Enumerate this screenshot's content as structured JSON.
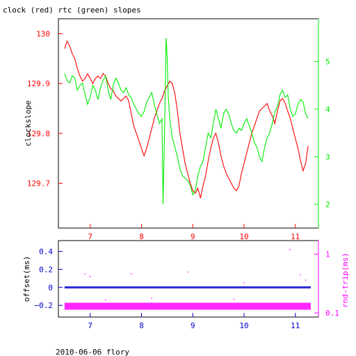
{
  "title": "clock (red) rtc (green) slopes",
  "footer": "2010-06-06 flory",
  "colors": {
    "red": "#ff0000",
    "green": "#00ee00",
    "blue": "#0000cc",
    "magenta": "#ff00ff",
    "axis": "#000000"
  },
  "chart_data": [
    {
      "type": "line",
      "title": "clock (red) rtc (green) slopes",
      "ylabel": "clockslope",
      "xlim": [
        6.38,
        11.45
      ],
      "ylim": [
        129.61,
        130.03
      ],
      "x_ticks": [
        7,
        8,
        9,
        10,
        11
      ],
      "y_ticks": [
        129.7,
        129.8,
        129.9,
        130
      ],
      "y_tick_labels": [
        "129.7",
        "129.8",
        "129.9",
        "130"
      ],
      "y2lim": [
        1.5,
        5.9
      ],
      "y2_ticks": [
        2,
        3,
        4,
        5
      ],
      "grid": false,
      "series": [
        {
          "name": "clock",
          "axis": "left",
          "color": "#ff0000",
          "x": [
            6.5,
            6.55,
            6.6,
            6.65,
            6.7,
            6.75,
            6.8,
            6.85,
            6.9,
            6.95,
            7.0,
            7.05,
            7.1,
            7.15,
            7.2,
            7.25,
            7.3,
            7.35,
            7.4,
            7.45,
            7.5,
            7.55,
            7.6,
            7.65,
            7.7,
            7.75,
            7.8,
            7.85,
            7.9,
            7.95,
            8.0,
            8.05,
            8.1,
            8.15,
            8.2,
            8.25,
            8.3,
            8.35,
            8.4,
            8.45,
            8.5,
            8.55,
            8.6,
            8.65,
            8.7,
            8.75,
            8.8,
            8.85,
            8.9,
            8.95,
            9.0,
            9.05,
            9.1,
            9.15,
            9.2,
            9.25,
            9.3,
            9.35,
            9.4,
            9.45,
            9.5,
            9.55,
            9.6,
            9.65,
            9.7,
            9.75,
            9.8,
            9.85,
            9.9,
            9.95,
            10.0,
            10.05,
            10.1,
            10.15,
            10.2,
            10.25,
            10.3,
            10.35,
            10.4,
            10.45,
            10.5,
            10.55,
            10.6,
            10.65,
            10.7,
            10.75,
            10.8,
            10.85,
            10.9,
            10.95,
            11.0,
            11.05,
            11.1,
            11.15,
            11.2,
            11.25
          ],
          "values": [
            129.97,
            129.985,
            129.975,
            129.96,
            129.95,
            129.93,
            129.915,
            129.905,
            129.91,
            129.92,
            129.91,
            129.9,
            129.91,
            129.915,
            129.91,
            129.92,
            129.915,
            129.9,
            129.89,
            129.885,
            129.875,
            129.87,
            129.865,
            129.87,
            129.875,
            129.865,
            129.84,
            129.815,
            129.8,
            129.785,
            129.77,
            129.755,
            129.77,
            129.79,
            129.81,
            129.83,
            129.845,
            129.86,
            129.87,
            129.885,
            129.895,
            129.905,
            129.9,
            129.88,
            129.845,
            129.8,
            129.77,
            129.74,
            129.72,
            129.7,
            129.685,
            129.68,
            129.69,
            129.67,
            129.695,
            129.715,
            129.745,
            129.77,
            129.79,
            129.8,
            129.78,
            129.755,
            129.735,
            129.72,
            129.71,
            129.7,
            129.69,
            129.685,
            129.695,
            129.72,
            129.74,
            129.76,
            129.78,
            129.8,
            129.815,
            129.83,
            129.845,
            129.85,
            129.855,
            129.86,
            129.845,
            129.835,
            129.82,
            129.845,
            129.865,
            129.87,
            129.86,
            129.845,
            129.83,
            129.81,
            129.79,
            129.77,
            129.745,
            129.725,
            129.74,
            129.775
          ]
        },
        {
          "name": "rtc",
          "axis": "right",
          "color": "#00ee00",
          "x": [
            6.5,
            6.55,
            6.6,
            6.65,
            6.7,
            6.75,
            6.8,
            6.85,
            6.9,
            6.95,
            7.0,
            7.05,
            7.1,
            7.15,
            7.2,
            7.25,
            7.3,
            7.35,
            7.4,
            7.45,
            7.5,
            7.55,
            7.6,
            7.65,
            7.7,
            7.75,
            7.8,
            7.85,
            7.9,
            7.95,
            8.0,
            8.05,
            8.1,
            8.15,
            8.2,
            8.25,
            8.3,
            8.35,
            8.4,
            8.42,
            8.45,
            8.48,
            8.5,
            8.52,
            8.55,
            8.6,
            8.65,
            8.7,
            8.75,
            8.8,
            8.85,
            8.9,
            8.95,
            9.0,
            9.05,
            9.1,
            9.15,
            9.2,
            9.25,
            9.3,
            9.35,
            9.4,
            9.45,
            9.5,
            9.55,
            9.6,
            9.65,
            9.7,
            9.75,
            9.8,
            9.85,
            9.9,
            9.95,
            10.0,
            10.05,
            10.1,
            10.15,
            10.2,
            10.25,
            10.3,
            10.35,
            10.4,
            10.45,
            10.5,
            10.55,
            10.6,
            10.65,
            10.7,
            10.75,
            10.8,
            10.85,
            10.9,
            10.95,
            11.0,
            11.05,
            11.1,
            11.15,
            11.2,
            11.25
          ],
          "values": [
            4.75,
            4.6,
            4.55,
            4.7,
            4.65,
            4.4,
            4.5,
            4.55,
            4.3,
            4.1,
            4.25,
            4.5,
            4.4,
            4.2,
            4.45,
            4.6,
            4.7,
            4.4,
            4.2,
            4.5,
            4.65,
            4.55,
            4.4,
            4.35,
            4.45,
            4.3,
            4.25,
            4.1,
            4.0,
            3.9,
            3.85,
            3.95,
            4.15,
            4.25,
            4.35,
            4.1,
            3.9,
            3.7,
            3.8,
            2.0,
            3.5,
            5.5,
            5.1,
            4.3,
            3.8,
            3.4,
            3.2,
            3.0,
            2.75,
            2.6,
            2.55,
            2.5,
            2.4,
            2.2,
            2.3,
            2.6,
            2.8,
            2.9,
            3.2,
            3.5,
            3.4,
            3.7,
            4.0,
            3.8,
            3.6,
            3.9,
            4.0,
            3.9,
            3.7,
            3.55,
            3.5,
            3.6,
            3.55,
            3.7,
            3.8,
            3.65,
            3.5,
            3.3,
            3.2,
            3.0,
            2.9,
            3.2,
            3.4,
            3.5,
            3.7,
            3.95,
            4.05,
            4.3,
            4.4,
            4.25,
            4.3,
            4.0,
            3.85,
            3.9,
            4.1,
            4.2,
            4.15,
            3.9,
            3.8
          ]
        }
      ]
    },
    {
      "type": "scatter",
      "ylabel": "offset(ms)",
      "y2label": "rnd-trip(ms)",
      "xlim": [
        6.38,
        11.45
      ],
      "ylim": [
        -0.33,
        0.52
      ],
      "x_ticks": [
        7,
        8,
        9,
        10,
        11
      ],
      "y_ticks": [
        -0.2,
        0,
        0.2,
        0.4
      ],
      "y_tick_labels": [
        "−0.2",
        "0",
        "0.2",
        "0.4"
      ],
      "y2_scale": "log",
      "y2lim": [
        0.085,
        1.7
      ],
      "y2_ticks": [
        0.1,
        1
      ],
      "y2_tick_labels": [
        "0.1",
        "1"
      ],
      "grid": false,
      "series": [
        {
          "name": "offset",
          "axis": "left",
          "color": "#0000cc",
          "x": [
            6.5,
            11.3
          ],
          "values": [
            0.0,
            0.0
          ]
        },
        {
          "name": "rnd-trip",
          "axis": "right",
          "color": "#ff00ff",
          "x": [
            6.5,
            11.3
          ],
          "values": [
            0.13,
            0.13
          ]
        }
      ],
      "outliers_offset": [
        [
          6.9,
          0.15
        ],
        [
          7.0,
          0.12
        ],
        [
          7.3,
          -0.14
        ],
        [
          7.8,
          0.15
        ],
        [
          8.2,
          -0.12
        ],
        [
          8.9,
          0.17
        ],
        [
          9.8,
          -0.13
        ],
        [
          10.0,
          0.05
        ],
        [
          10.9,
          0.42
        ],
        [
          11.1,
          0.14
        ],
        [
          11.2,
          0.08
        ]
      ]
    }
  ]
}
